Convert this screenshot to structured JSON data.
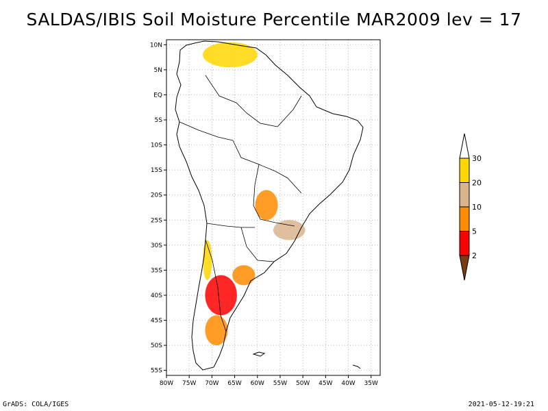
{
  "title": "SALDAS/IBIS Soil Moisture Percentile MAR2009 lev = 17",
  "footer": {
    "left": "GrADS: COLA/IGES",
    "right": "2021-05-12-19:21"
  },
  "map": {
    "lon_range": [
      -80,
      -33
    ],
    "lat_range": [
      -56,
      11
    ],
    "lon_ticks": [
      {
        "value": -80,
        "label": "80W"
      },
      {
        "value": -75,
        "label": "75W"
      },
      {
        "value": -70,
        "label": "70W"
      },
      {
        "value": -65,
        "label": "65W"
      },
      {
        "value": -60,
        "label": "60W"
      },
      {
        "value": -55,
        "label": "55W"
      },
      {
        "value": -50,
        "label": "50W"
      },
      {
        "value": -45,
        "label": "45W"
      },
      {
        "value": -40,
        "label": "40W"
      },
      {
        "value": -35,
        "label": "35W"
      }
    ],
    "lat_ticks": [
      {
        "value": 10,
        "label": "10N"
      },
      {
        "value": 5,
        "label": "5N"
      },
      {
        "value": 0,
        "label": "EQ"
      },
      {
        "value": -5,
        "label": "5S"
      },
      {
        "value": -10,
        "label": "10S"
      },
      {
        "value": -15,
        "label": "15S"
      },
      {
        "value": -20,
        "label": "20S"
      },
      {
        "value": -25,
        "label": "25S"
      },
      {
        "value": -30,
        "label": "30S"
      },
      {
        "value": -35,
        "label": "35S"
      },
      {
        "value": -40,
        "label": "40S"
      },
      {
        "value": -45,
        "label": "45S"
      },
      {
        "value": -50,
        "label": "50S"
      },
      {
        "value": -55,
        "label": "55S"
      }
    ]
  },
  "legend": {
    "bins": [
      {
        "color": "#7a3c0f",
        "range": "<2"
      },
      {
        "color": "#ff0000",
        "range": "2-5"
      },
      {
        "color": "#ff8c00",
        "range": "5-10"
      },
      {
        "color": "#d9b48c",
        "range": "10-20"
      },
      {
        "color": "#ffd700",
        "range": "20-30"
      },
      {
        "color": "#ffffff",
        "range": ">30"
      }
    ],
    "labels": [
      "2",
      "5",
      "10",
      "20",
      "30"
    ]
  },
  "dry_regions": [
    {
      "name": "patagonia-core",
      "lon": -68,
      "lat": -40,
      "rx": 3.5,
      "ry": 4,
      "category": "2-5"
    },
    {
      "name": "patagonia-south",
      "lon": -69,
      "lat": -47,
      "rx": 2.5,
      "ry": 3,
      "category": "5-10"
    },
    {
      "name": "pampas-west",
      "lon": -63,
      "lat": -36,
      "rx": 2.5,
      "ry": 2,
      "category": "5-10"
    },
    {
      "name": "southern-brazil",
      "lon": -53,
      "lat": -27,
      "rx": 3.5,
      "ry": 2,
      "category": "10-20"
    },
    {
      "name": "paraguay-chaco",
      "lon": -58,
      "lat": -22,
      "rx": 2.5,
      "ry": 3,
      "category": "5-10"
    },
    {
      "name": "venezuela-north",
      "lon": -66,
      "lat": 8,
      "rx": 6,
      "ry": 2.5,
      "category": "20-30"
    },
    {
      "name": "chile-central",
      "lon": -71,
      "lat": -33,
      "rx": 1,
      "ry": 4,
      "category": "20-30"
    }
  ]
}
